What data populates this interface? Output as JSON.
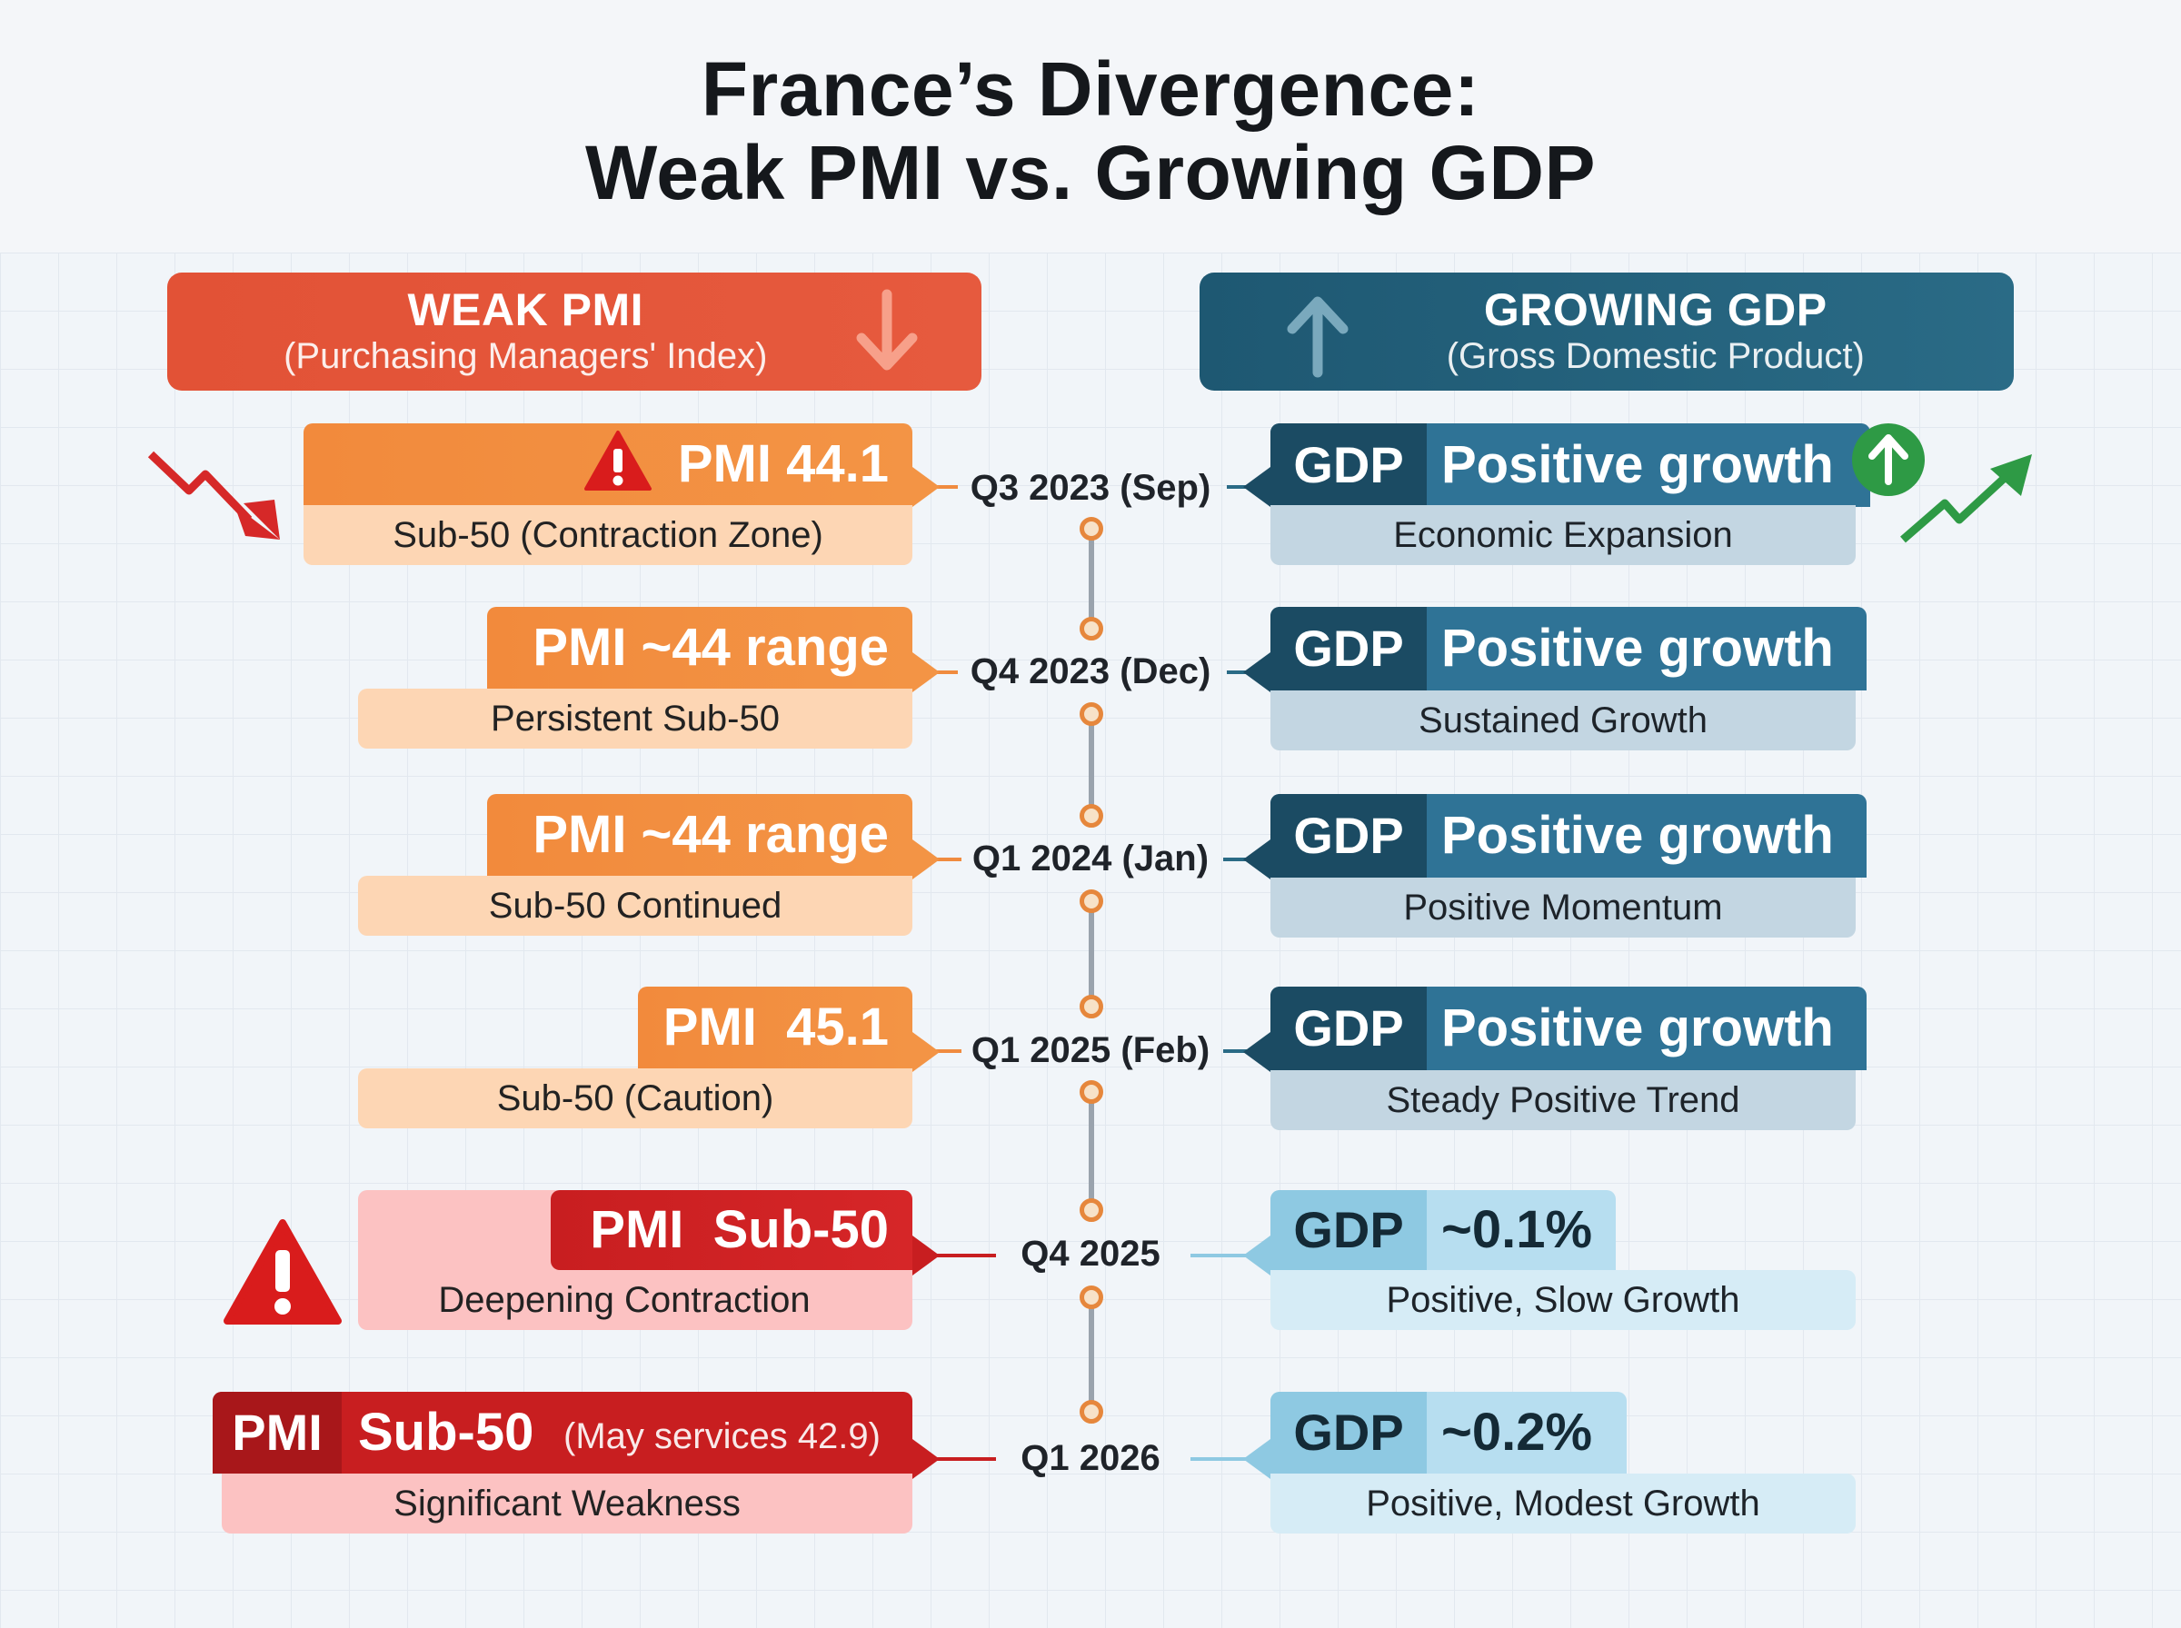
{
  "title": {
    "line1": "France’s Divergence:",
    "line2": "Weak PMI vs. Growing GDP"
  },
  "left_header": {
    "title": "WEAK PMI",
    "subtitle": "(Purchasing Managers' Index)"
  },
  "right_header": {
    "title": "GROWING GDP",
    "subtitle": "(Gross Domestic Product)"
  },
  "rows": [
    {
      "period": "Q3 2023 (Sep)",
      "pmi_label": "PMI 44.1",
      "pmi_note": "Sub-50 (Contraction Zone)",
      "gdp_key": "GDP",
      "gdp_value": "Positive growth",
      "gdp_note": "Economic Expansion"
    },
    {
      "period": "Q4 2023 (Dec)",
      "pmi_label": "PMI ~44 range",
      "pmi_note": "Persistent Sub-50",
      "gdp_key": "GDP",
      "gdp_value": "Positive growth",
      "gdp_note": "Sustained Growth"
    },
    {
      "period": "Q1 2024 (Jan)",
      "pmi_label": "PMI ~44 range",
      "pmi_note": "Sub-50 Continued",
      "gdp_key": "GDP",
      "gdp_value": "Positive growth",
      "gdp_note": "Positive Momentum"
    },
    {
      "period": "Q1 2025 (Feb)",
      "pmi_label": "PMI  45.1",
      "pmi_note": "Sub-50 (Caution)",
      "gdp_key": "GDP",
      "gdp_value": "Positive growth",
      "gdp_note": "Steady Positive Trend"
    },
    {
      "period": "Q4 2025",
      "pmi_label": "PMI  Sub-50",
      "pmi_note": "Deepening Contraction",
      "gdp_key": "GDP",
      "gdp_value": "~0.1%",
      "gdp_note": "Positive, Slow Growth"
    },
    {
      "period": "Q1 2026",
      "pmi_key": "PMI",
      "pmi_value": "Sub-50",
      "pmi_extra": "(May services 42.9)",
      "pmi_note": "Significant Weakness",
      "gdp_key": "GDP",
      "gdp_value": "~0.2%",
      "gdp_note": "Positive, Modest Growth"
    }
  ],
  "colors": {
    "orange": "#f28a3c",
    "crimson": "#c81e20",
    "navy": "#1e5872",
    "light_blue": "#8ec9e2",
    "warning_red": "#d91c1c",
    "trend_green": "#2e9a45"
  },
  "icons": [
    "down-arrow-icon",
    "up-arrow-icon",
    "warning-icon",
    "trend-down-icon",
    "trend-up-icon",
    "up-circle-icon"
  ]
}
